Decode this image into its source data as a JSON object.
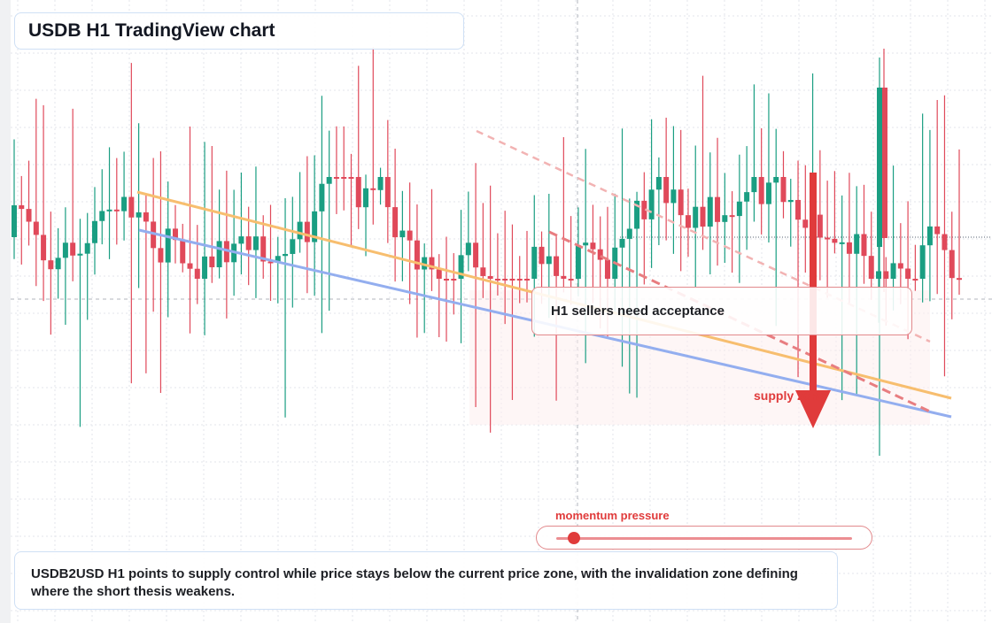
{
  "title": "USDB H1 TradingView chart",
  "callout": "H1 sellers need acceptance",
  "zone_label": "supply zone",
  "momentum": {
    "label": "momentum pressure",
    "level": 0.06
  },
  "note": "USDB2USD H1 points to supply control while price stays below the current price zone, with the invalidation zone defining where the short thesis weakens.",
  "colors": {
    "up": "#1a9e82",
    "down": "#e0495a",
    "trend_orange": "#f7be6f",
    "trend_blue": "#93aeef",
    "supply_red": "#e03b3b",
    "accent_border": "#cfe0f5"
  },
  "chart_data": {
    "type": "candlestick",
    "symbol": "USDB2USD",
    "timeframe": "H1",
    "candle_count": 130,
    "y_range_visible": "no axis labels printed",
    "trendlines": [
      "descending resistance (orange)",
      "descending support (blue)",
      "dashed supply lines (red)"
    ],
    "signal": "bearish arrow into supply zone"
  }
}
